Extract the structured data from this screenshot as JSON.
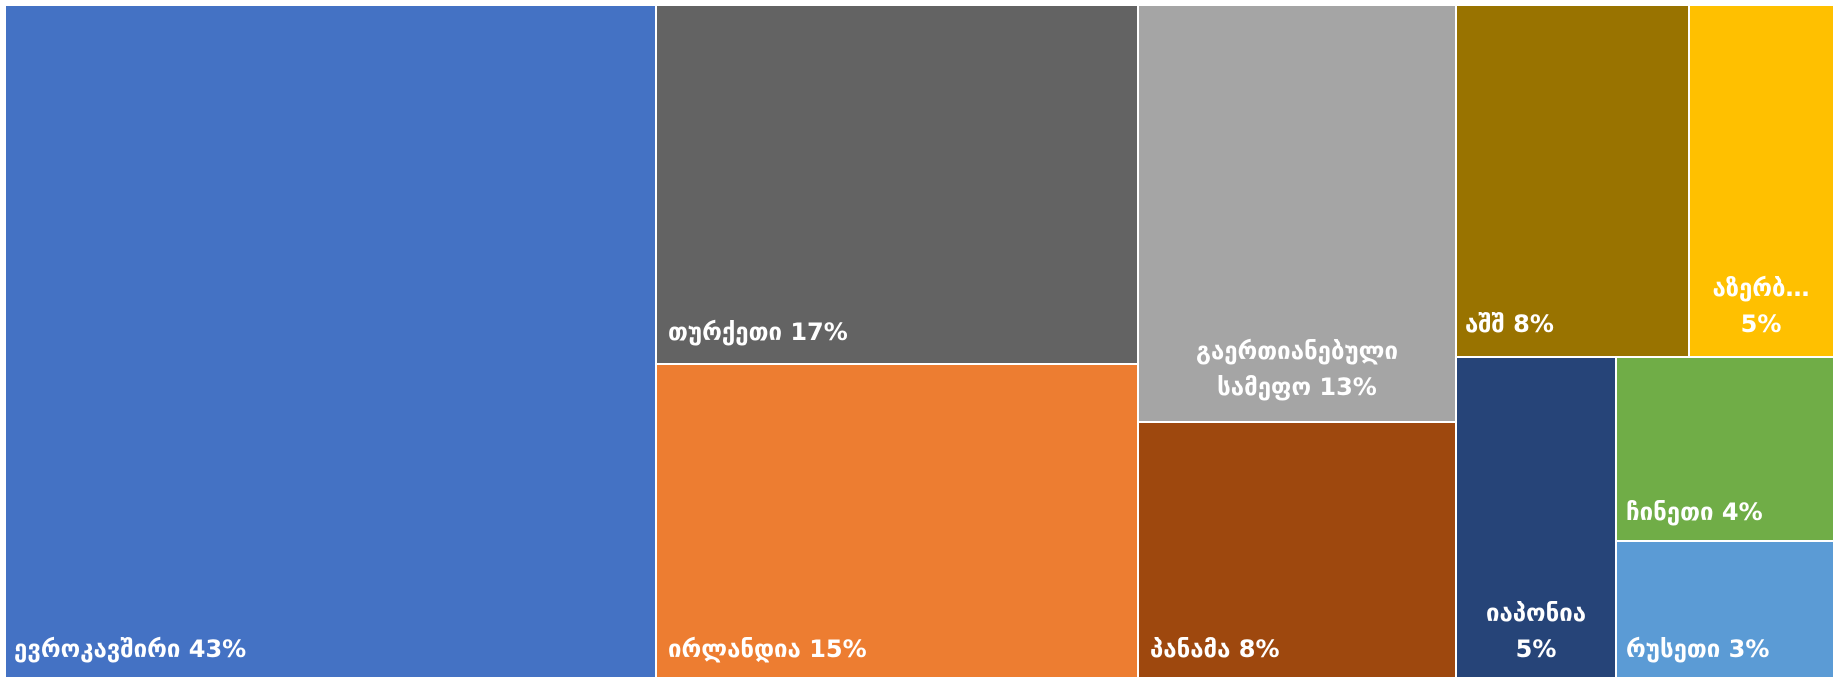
{
  "chart_data": {
    "type": "treemap",
    "colors": {
      "border": "#ffffff",
      "label": "#ffffff"
    },
    "items": [
      {
        "name": "ევროკავშირი",
        "value": 43,
        "label": "ევროკავშირი 43%",
        "color": "#4472C4"
      },
      {
        "name": "თურქეთი",
        "value": 17,
        "label": "თურქეთი 17%",
        "color": "#636363"
      },
      {
        "name": "ირლანდია",
        "value": 15,
        "label": "ირლანდია 15%",
        "color": "#ED7D31"
      },
      {
        "name": "გაერთიანებული სამეფო",
        "value": 13,
        "label_lines": [
          "გაერთიანებული",
          "სამეფო 13%"
        ],
        "color": "#A5A5A5"
      },
      {
        "name": "პანამა",
        "value": 8,
        "label": "პანამა 8%",
        "color": "#9E480E"
      },
      {
        "name": "აშშ",
        "value": 8,
        "label": "აშშ 8%",
        "color": "#997300"
      },
      {
        "name": "აზერბ…",
        "value": 5,
        "label_lines": [
          "აზერბ…",
          "5%"
        ],
        "color": "#FFC000"
      },
      {
        "name": "იაპონია",
        "value": 5,
        "label_lines": [
          "იაპონია",
          "5%"
        ],
        "color": "#264478"
      },
      {
        "name": "ჩინეთი",
        "value": 4,
        "label": "ჩინეთი 4%",
        "color": "#70AD47"
      },
      {
        "name": "რუსეთი",
        "value": 3,
        "label": "რუსეთი 3%",
        "color": "#5B9BD5"
      }
    ]
  }
}
